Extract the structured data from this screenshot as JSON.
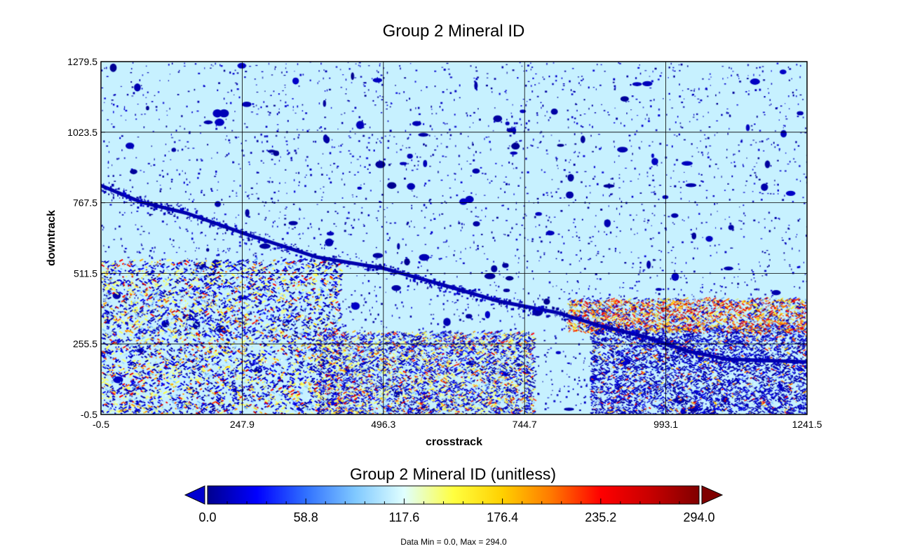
{
  "chart_data": {
    "type": "heatmap",
    "title": "Group 2 Mineral ID",
    "xlabel": "crosstrack",
    "ylabel": "downtrack",
    "xlim": [
      -0.5,
      1241.5
    ],
    "ylim": [
      -0.5,
      1279.5
    ],
    "x_ticks": [
      "-0.5",
      "247.9",
      "496.3",
      "744.7",
      "993.1",
      "1241.5"
    ],
    "y_ticks": [
      "-0.5",
      "255.5",
      "511.5",
      "767.5",
      "1023.5",
      "1279.5"
    ],
    "grid": true,
    "colorbar": {
      "title": "Group 2 Mineral ID (unitless)",
      "range": [
        0,
        294
      ],
      "ticks": [
        "0.0",
        "58.8",
        "117.6",
        "176.4",
        "235.2",
        "294.0"
      ],
      "colors": [
        "#00008f",
        "#0000ff",
        "#3070ff",
        "#7fc8ff",
        "#e0ffff",
        "#ffff40",
        "#ffd000",
        "#ff7800",
        "#ff0000",
        "#c80000",
        "#800000"
      ],
      "under_color": "#0000d0",
      "over_color": "#800000"
    },
    "dominant_value": 110,
    "features": {
      "river": [
        [
          -0.5,
          830
        ],
        [
          70,
          770
        ],
        [
          150,
          730
        ],
        [
          260,
          650
        ],
        [
          380,
          570
        ],
        [
          496,
          530
        ],
        [
          600,
          470
        ],
        [
          700,
          410
        ],
        [
          800,
          370
        ],
        [
          880,
          320
        ],
        [
          960,
          280
        ],
        [
          1030,
          230
        ],
        [
          1100,
          200
        ],
        [
          1241.5,
          190
        ]
      ],
      "clusters": [
        {
          "name": "southwest-fields",
          "x": [
            -0.5,
            420
          ],
          "y": [
            -0.5,
            560
          ]
        },
        {
          "name": "south-fields",
          "x": [
            380,
            760
          ],
          "y": [
            -0.5,
            300
          ]
        },
        {
          "name": "southeast-dark",
          "x": [
            860,
            1241.5
          ],
          "y": [
            -0.5,
            320
          ]
        },
        {
          "name": "east-orange-band",
          "x": [
            820,
            1241.5
          ],
          "y": [
            300,
            420
          ]
        }
      ]
    },
    "stats_text": "Data Min = 0.0, Max = 294.0"
  }
}
